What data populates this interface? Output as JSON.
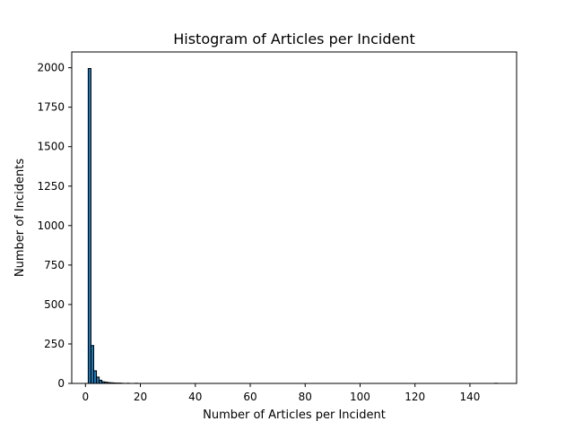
{
  "chart_data": {
    "type": "bar",
    "title": "Histogram of Articles per Incident",
    "xlabel": "Number of Articles per Incident",
    "ylabel": "Number of Incidents",
    "xlim": [
      -5,
      157
    ],
    "ylim": [
      0,
      2100
    ],
    "xticks": [
      0,
      20,
      40,
      60,
      80,
      100,
      120,
      140
    ],
    "yticks": [
      0,
      250,
      500,
      750,
      1000,
      1250,
      1500,
      1750,
      2000
    ],
    "bin_width": 1.0,
    "bins": [
      {
        "x0": 1,
        "x1": 2,
        "value": 1995
      },
      {
        "x0": 2,
        "x1": 3,
        "value": 240
      },
      {
        "x0": 3,
        "x1": 4,
        "value": 80
      },
      {
        "x0": 4,
        "x1": 5,
        "value": 40
      },
      {
        "x0": 5,
        "x1": 6,
        "value": 20
      },
      {
        "x0": 6,
        "x1": 7,
        "value": 10
      },
      {
        "x0": 7,
        "x1": 8,
        "value": 8
      },
      {
        "x0": 8,
        "x1": 9,
        "value": 5
      },
      {
        "x0": 9,
        "x1": 10,
        "value": 4
      },
      {
        "x0": 10,
        "x1": 11,
        "value": 3
      },
      {
        "x0": 11,
        "x1": 12,
        "value": 2
      },
      {
        "x0": 12,
        "x1": 13,
        "value": 2
      },
      {
        "x0": 13,
        "x1": 14,
        "value": 1
      },
      {
        "x0": 15,
        "x1": 16,
        "value": 1
      },
      {
        "x0": 18,
        "x1": 19,
        "value": 1
      },
      {
        "x0": 149,
        "x1": 150,
        "value": 1
      }
    ],
    "bar_color": "#1f77b4",
    "edge_color": "#000000",
    "grid": false,
    "legend": null
  }
}
